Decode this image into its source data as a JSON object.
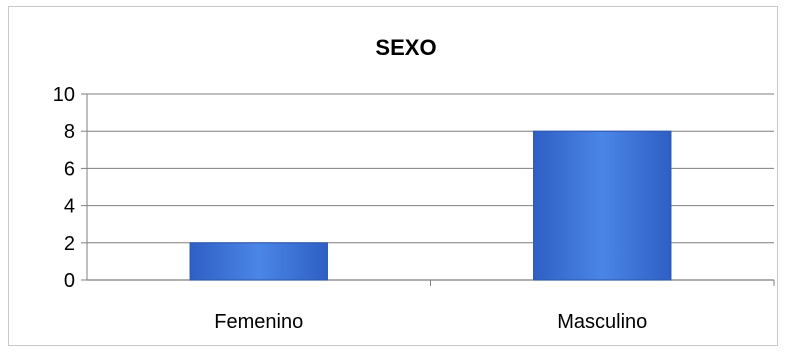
{
  "chart_data": {
    "type": "bar",
    "title": "SEXO",
    "categories": [
      "Femenino",
      "Masculino"
    ],
    "values": [
      2,
      8
    ],
    "xlabel": "",
    "ylabel": "",
    "ylim": [
      0,
      10
    ],
    "yticks": [
      0,
      2,
      4,
      6,
      8,
      10
    ],
    "grid": true,
    "legend": "none",
    "colors": {
      "bar_fill": "#3d73d6",
      "bar_edge": "#2a57b0",
      "grid": "#7f7f7f",
      "axis": "#7f7f7f"
    }
  }
}
